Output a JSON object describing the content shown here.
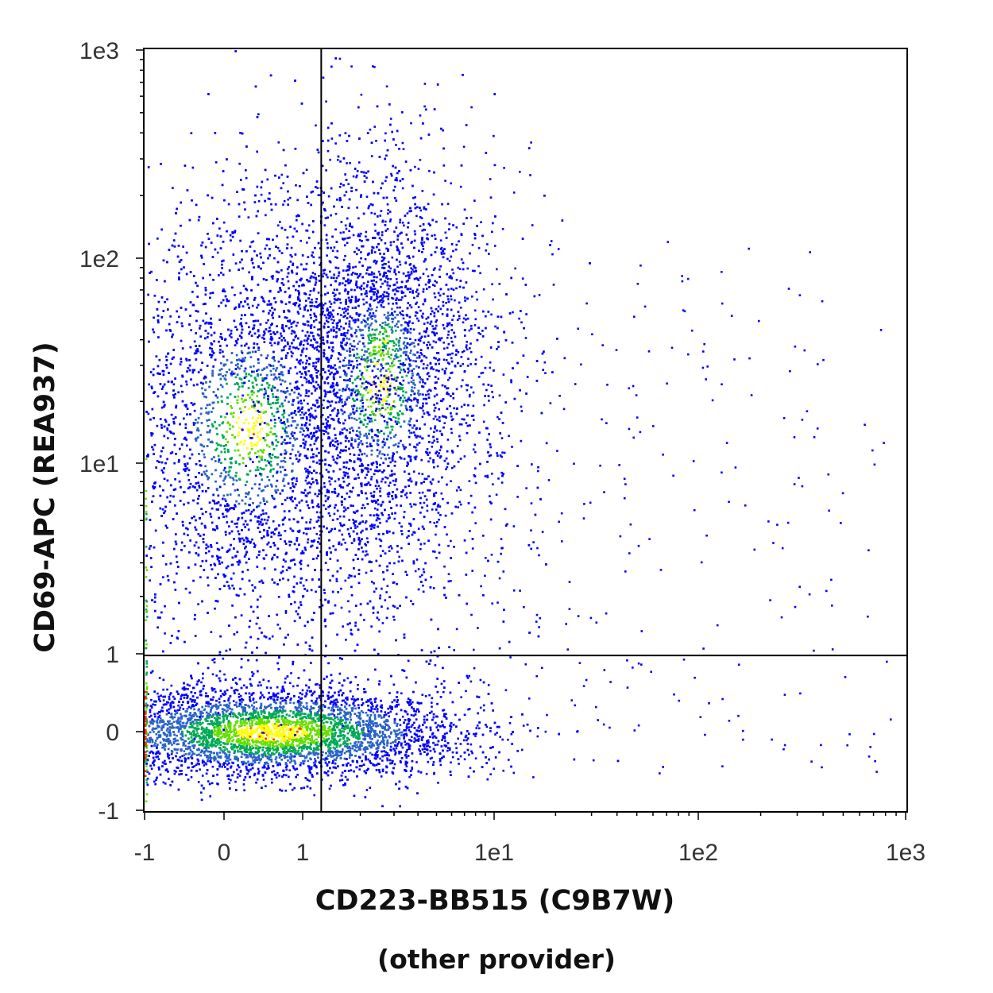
{
  "chart_data": {
    "type": "scatter",
    "style": "density pseudocolor dot plot (flow cytometry)",
    "xlabel": "CD223-BB515 (C9B7W)",
    "xlabel_note": "(other provider)",
    "ylabel": "CD69-APC (REA937)",
    "x_scale": "biexponential",
    "y_scale": "biexponential",
    "xlim": [
      -1,
      1000
    ],
    "ylim": [
      -1,
      1000
    ],
    "x_ticks": [
      {
        "value": -1,
        "label": "-1"
      },
      {
        "value": 0,
        "label": "0"
      },
      {
        "value": 1,
        "label": "1"
      },
      {
        "value": 10,
        "label": "1e1"
      },
      {
        "value": 100,
        "label": "1e2"
      },
      {
        "value": 1000,
        "label": "1e3"
      }
    ],
    "y_ticks": [
      {
        "value": -1,
        "label": "-1"
      },
      {
        "value": 0,
        "label": "0"
      },
      {
        "value": 1,
        "label": "1"
      },
      {
        "value": 10,
        "label": "1e1"
      },
      {
        "value": 100,
        "label": "1e2"
      },
      {
        "value": 1000,
        "label": "1e3"
      }
    ],
    "quadrant_gate": {
      "x": 1.25,
      "y": 0.95
    },
    "density_colors": [
      "#0000ff",
      "#2a62c8",
      "#00aa55",
      "#66dd00",
      "#ffff00",
      "#ff3300"
    ],
    "populations": [
      {
        "name": "CD69-negative cluster",
        "center": {
          "x": 0.4,
          "y": 0.0
        },
        "x_range": [
          -1,
          4.5
        ],
        "y_range": [
          -0.6,
          0.6
        ],
        "density": "highest"
      },
      {
        "name": "CD69-positive CD223-negative cluster",
        "center": {
          "x": 0.2,
          "y": 15
        },
        "x_range": [
          -1,
          1.25
        ],
        "y_range": [
          1,
          150
        ],
        "density": "medium"
      },
      {
        "name": "CD69-positive CD223-positive cluster",
        "center": {
          "x": 2.5,
          "y": 25
        },
        "x_range": [
          1.25,
          9
        ],
        "y_range": [
          1,
          200
        ],
        "density": "medium"
      },
      {
        "name": "sparse high CD223 events",
        "center": {
          "x": 60,
          "y": 8
        },
        "x_range": [
          10,
          900
        ],
        "y_range": [
          -0.5,
          60
        ],
        "density": "sparse"
      }
    ]
  }
}
